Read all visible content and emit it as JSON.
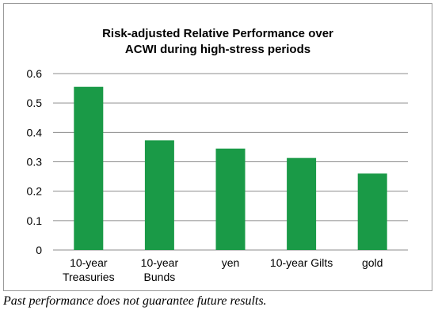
{
  "chart_data": {
    "type": "bar",
    "title_lines": [
      "Risk-adjusted Relative Performance over",
      "ACWI during high-stress periods"
    ],
    "categories": [
      [
        "10-year",
        "Treasuries"
      ],
      [
        "10-year",
        "Bunds"
      ],
      [
        "yen"
      ],
      [
        "10-year Gilts"
      ],
      [
        "gold"
      ]
    ],
    "values": [
      0.555,
      0.373,
      0.345,
      0.313,
      0.26
    ],
    "ylim": [
      0,
      0.6
    ],
    "yticks": [
      "0",
      "0.1",
      "0.2",
      "0.3",
      "0.4",
      "0.5",
      "0.6"
    ],
    "grid": true,
    "legend": "none",
    "bar_color": "#1a9a47",
    "grid_color": "#8c8c8c"
  },
  "footer": {
    "disclaimer": "Past performance does not guarantee future results."
  }
}
